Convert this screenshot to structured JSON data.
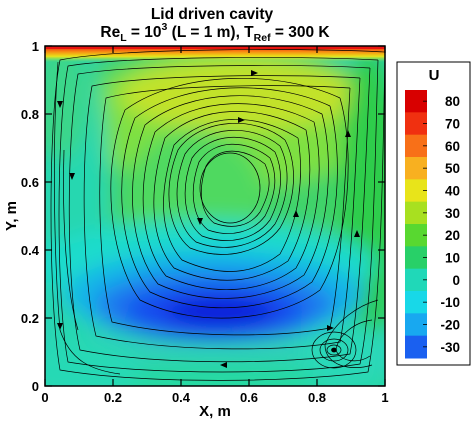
{
  "chart_data": {
    "type": "heatmap",
    "title_line1": "Lid driven cavity",
    "title_line2": {
      "re": "Re",
      "re_sub": "L",
      "eq1": " = 10",
      "exp": "3",
      "mid": " (L = 1 m), T",
      "t_sub": "Ref",
      "tail": " = 300 K"
    },
    "xlabel": "X, m",
    "ylabel": "Y, m",
    "xlim": [
      0,
      1
    ],
    "ylim": [
      0,
      1
    ],
    "x_ticks": [
      "0",
      "0.2",
      "0.4",
      "0.6",
      "0.8",
      "1"
    ],
    "y_ticks": [
      "0",
      "0.2",
      "0.4",
      "0.6",
      "0.8",
      "1"
    ],
    "colorbar": {
      "label": "U",
      "levels": [
        "80",
        "70",
        "60",
        "50",
        "40",
        "30",
        "20",
        "10",
        "0",
        "-10",
        "-20",
        "-30"
      ],
      "min": -35,
      "max": 85
    },
    "primary_vortex_center": [
      0.465,
      0.585
    ],
    "secondary_vortex_center": [
      0.85,
      0.105
    ],
    "lid_velocity_top": 85,
    "min_velocity_region": [
      0.48,
      0.22
    ],
    "colors": {
      "red": "#e81410",
      "orange": "#f88a12",
      "yellow": "#e8e41a",
      "green": "#2fcd2b",
      "cyan": "#1ee4e4",
      "blue": "#1252f0",
      "dark_blue": "#1010d8"
    }
  }
}
